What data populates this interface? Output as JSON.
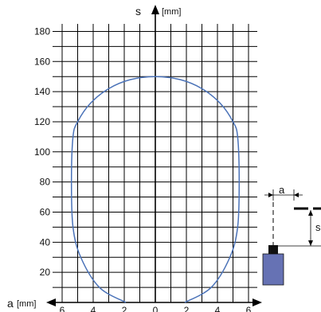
{
  "chart_data": {
    "type": "line",
    "x_axis": {
      "name": "a",
      "unit": "[mm]",
      "range": [
        -6,
        6
      ],
      "tick_labels": [
        "-6",
        "-4",
        "-2",
        "0",
        "2",
        "4",
        "6"
      ]
    },
    "y_axis": {
      "name": "s",
      "unit": "[mm]",
      "range": [
        0,
        185
      ],
      "tick_labels": [
        "20",
        "40",
        "60",
        "80",
        "100",
        "120",
        "140",
        "160",
        "180"
      ]
    },
    "grid": {
      "x_step": 1,
      "y_step": 10
    },
    "series": [
      {
        "points": [
          [
            -1.9,
            0
          ],
          [
            -3.6,
            10
          ],
          [
            -4.8,
            30
          ],
          [
            -5.3,
            50
          ],
          [
            -5.4,
            80
          ],
          [
            -5.3,
            110
          ],
          [
            -5.0,
            120
          ],
          [
            -4.2,
            132
          ],
          [
            -3.0,
            142
          ],
          [
            -1.6,
            148
          ],
          [
            0,
            150
          ],
          [
            1.6,
            148
          ],
          [
            3.0,
            142
          ],
          [
            4.2,
            132
          ],
          [
            5.0,
            120
          ],
          [
            5.3,
            110
          ],
          [
            5.4,
            80
          ],
          [
            5.3,
            50
          ],
          [
            4.8,
            30
          ],
          [
            3.6,
            10
          ],
          [
            1.9,
            0
          ]
        ],
        "color": "#4a72b8"
      }
    ],
    "inset": {
      "label_a": "a",
      "label_s": "s",
      "sensor_color": "#6672b4"
    }
  }
}
